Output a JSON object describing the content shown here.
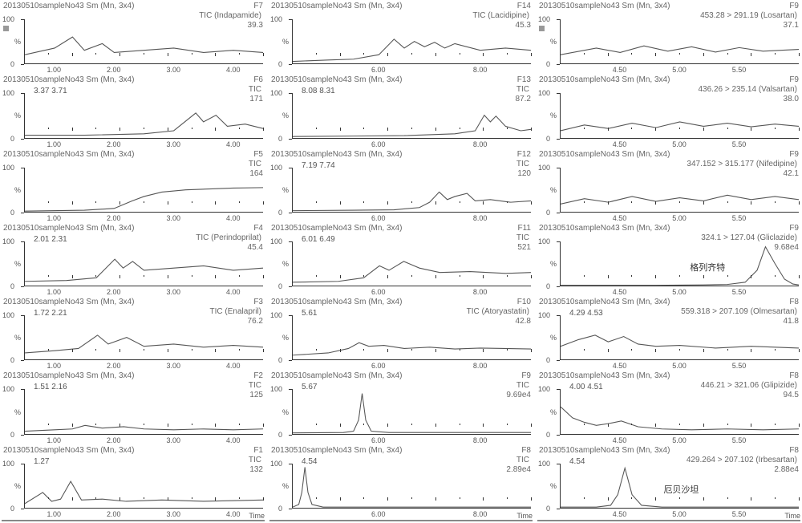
{
  "sample_label": "20130510sampleNo43 Sm (Mn, 3x4)",
  "time_label": "Time",
  "y_unit": "%",
  "y_ticks": [
    0,
    100
  ],
  "columns": [
    {
      "x_ticks": [
        "1.00",
        "2.00",
        "3.00",
        "4.00"
      ],
      "x_range": [
        0.5,
        4.5
      ],
      "panels": [
        {
          "f": "F7",
          "sub": "TIC (Indapamide)",
          "val": "39.3",
          "peaks": "",
          "marker": true,
          "trace": [
            [
              0.5,
              20
            ],
            [
              1.0,
              35
            ],
            [
              1.3,
              60
            ],
            [
              1.5,
              30
            ],
            [
              1.8,
              45
            ],
            [
              2.0,
              25
            ],
            [
              2.5,
              30
            ],
            [
              3.0,
              35
            ],
            [
              3.5,
              25
            ],
            [
              4.0,
              30
            ],
            [
              4.5,
              25
            ]
          ]
        },
        {
          "f": "F6",
          "sub": "TIC",
          "val": "171",
          "peaks": "3.37   3.71",
          "trace": [
            [
              0.5,
              5
            ],
            [
              1.5,
              5
            ],
            [
              2.5,
              8
            ],
            [
              3.0,
              15
            ],
            [
              3.37,
              55
            ],
            [
              3.5,
              35
            ],
            [
              3.71,
              50
            ],
            [
              3.9,
              25
            ],
            [
              4.2,
              30
            ],
            [
              4.5,
              20
            ]
          ]
        },
        {
          "f": "F5",
          "sub": "TIC",
          "val": "164",
          "peaks": "",
          "trace": [
            [
              0.5,
              2
            ],
            [
              1.5,
              4
            ],
            [
              2.0,
              8
            ],
            [
              2.3,
              25
            ],
            [
              2.5,
              35
            ],
            [
              2.8,
              45
            ],
            [
              3.2,
              50
            ],
            [
              3.6,
              52
            ],
            [
              4.0,
              54
            ],
            [
              4.5,
              55
            ]
          ]
        },
        {
          "f": "F4",
          "sub": "TIC (Perindoprilat)",
          "val": "45.4",
          "peaks": "2.01  2.31",
          "trace": [
            [
              0.5,
              10
            ],
            [
              1.2,
              12
            ],
            [
              1.7,
              18
            ],
            [
              2.01,
              60
            ],
            [
              2.15,
              40
            ],
            [
              2.31,
              55
            ],
            [
              2.5,
              35
            ],
            [
              3.0,
              40
            ],
            [
              3.5,
              45
            ],
            [
              4.0,
              35
            ],
            [
              4.5,
              40
            ]
          ]
        },
        {
          "f": "F3",
          "sub": "TIC (Enalapril)",
          "val": "76.2",
          "peaks": "1.72    2.21",
          "trace": [
            [
              0.5,
              15
            ],
            [
              1.0,
              20
            ],
            [
              1.4,
              25
            ],
            [
              1.72,
              55
            ],
            [
              1.9,
              35
            ],
            [
              2.21,
              50
            ],
            [
              2.5,
              30
            ],
            [
              3.0,
              35
            ],
            [
              3.5,
              28
            ],
            [
              4.0,
              32
            ],
            [
              4.5,
              28
            ]
          ]
        },
        {
          "f": "F2",
          "sub": "TIC",
          "val": "125",
          "peaks": "1.51  2.16",
          "trace": [
            [
              0.5,
              5
            ],
            [
              1.0,
              8
            ],
            [
              1.3,
              10
            ],
            [
              1.51,
              18
            ],
            [
              1.8,
              12
            ],
            [
              2.16,
              15
            ],
            [
              2.5,
              10
            ],
            [
              3.0,
              8
            ],
            [
              3.5,
              10
            ],
            [
              4.0,
              8
            ],
            [
              4.5,
              10
            ]
          ]
        },
        {
          "f": "F1",
          "sub": "TIC",
          "val": "132",
          "peaks": "1.27",
          "trace": [
            [
              0.5,
              10
            ],
            [
              0.8,
              35
            ],
            [
              0.95,
              15
            ],
            [
              1.1,
              20
            ],
            [
              1.27,
              60
            ],
            [
              1.45,
              18
            ],
            [
              1.8,
              20
            ],
            [
              2.2,
              15
            ],
            [
              2.8,
              18
            ],
            [
              3.5,
              15
            ],
            [
              4.5,
              18
            ]
          ]
        }
      ]
    },
    {
      "x_ticks": [
        "6.00",
        "8.00"
      ],
      "x_range": [
        4.3,
        9.0
      ],
      "panels": [
        {
          "f": "F14",
          "sub": "TIC (Lacidipine)",
          "val": "45.3",
          "peaks": "",
          "trace": [
            [
              4.3,
              5
            ],
            [
              5.0,
              8
            ],
            [
              5.5,
              10
            ],
            [
              6.0,
              20
            ],
            [
              6.3,
              55
            ],
            [
              6.5,
              35
            ],
            [
              6.7,
              50
            ],
            [
              6.9,
              38
            ],
            [
              7.1,
              48
            ],
            [
              7.3,
              35
            ],
            [
              7.5,
              45
            ],
            [
              8.0,
              30
            ],
            [
              8.5,
              35
            ],
            [
              9.0,
              30
            ]
          ]
        },
        {
          "f": "F13",
          "sub": "TIC",
          "val": "87.2",
          "peaks": "8.08  8.31",
          "trace": [
            [
              4.3,
              2
            ],
            [
              5.5,
              3
            ],
            [
              6.5,
              4
            ],
            [
              7.5,
              8
            ],
            [
              7.9,
              15
            ],
            [
              8.08,
              50
            ],
            [
              8.2,
              35
            ],
            [
              8.31,
              48
            ],
            [
              8.5,
              25
            ],
            [
              8.8,
              15
            ],
            [
              9.0,
              18
            ]
          ]
        },
        {
          "f": "F12",
          "sub": "TIC",
          "val": "120",
          "peaks": "7.19   7.74",
          "trace": [
            [
              4.3,
              3
            ],
            [
              5.5,
              4
            ],
            [
              6.3,
              5
            ],
            [
              6.8,
              10
            ],
            [
              7.0,
              22
            ],
            [
              7.19,
              45
            ],
            [
              7.35,
              28
            ],
            [
              7.5,
              35
            ],
            [
              7.74,
              42
            ],
            [
              7.9,
              25
            ],
            [
              8.2,
              28
            ],
            [
              8.6,
              22
            ],
            [
              9.0,
              25
            ]
          ]
        },
        {
          "f": "F11",
          "sub": "TIC",
          "val": "521",
          "peaks": "6.01   6.49",
          "trace": [
            [
              4.3,
              8
            ],
            [
              5.2,
              10
            ],
            [
              5.7,
              18
            ],
            [
              6.01,
              45
            ],
            [
              6.2,
              35
            ],
            [
              6.49,
              55
            ],
            [
              6.8,
              40
            ],
            [
              7.2,
              30
            ],
            [
              7.8,
              32
            ],
            [
              8.5,
              28
            ],
            [
              9.0,
              30
            ]
          ]
        },
        {
          "f": "F10",
          "sub": "TIC (Atoryastatin)",
          "val": "42.8",
          "peaks": "5.61",
          "trace": [
            [
              4.3,
              10
            ],
            [
              5.0,
              15
            ],
            [
              5.4,
              25
            ],
            [
              5.61,
              38
            ],
            [
              5.8,
              30
            ],
            [
              6.1,
              32
            ],
            [
              6.5,
              25
            ],
            [
              7.0,
              28
            ],
            [
              7.5,
              24
            ],
            [
              8.0,
              26
            ],
            [
              9.0,
              24
            ]
          ]
        },
        {
          "f": "F9",
          "sub": "TIC",
          "val": "9.69e4",
          "peaks": "5.67",
          "trace": [
            [
              4.3,
              1
            ],
            [
              5.3,
              2
            ],
            [
              5.5,
              5
            ],
            [
              5.6,
              30
            ],
            [
              5.67,
              90
            ],
            [
              5.74,
              30
            ],
            [
              5.85,
              5
            ],
            [
              6.2,
              2
            ],
            [
              7.0,
              2
            ],
            [
              8.0,
              2
            ],
            [
              9.0,
              2
            ]
          ]
        },
        {
          "f": "F8",
          "sub": "TIC",
          "val": "2.89e4",
          "peaks": "4.54",
          "trace": [
            [
              4.3,
              2
            ],
            [
              4.42,
              8
            ],
            [
              4.48,
              35
            ],
            [
              4.54,
              92
            ],
            [
              4.6,
              35
            ],
            [
              4.68,
              8
            ],
            [
              4.9,
              2
            ],
            [
              5.5,
              2
            ],
            [
              6.5,
              2
            ],
            [
              8.0,
              2
            ],
            [
              9.0,
              2
            ]
          ]
        }
      ]
    },
    {
      "x_ticks": [
        "4.50",
        "5.00",
        "5.50"
      ],
      "x_range": [
        4.0,
        6.0
      ],
      "panels": [
        {
          "f": "F9",
          "sub": "453.28 > 291.19 (Losartan)",
          "val": "37.1",
          "peaks": "",
          "marker": true,
          "trace": [
            [
              4.0,
              20
            ],
            [
              4.3,
              35
            ],
            [
              4.5,
              25
            ],
            [
              4.7,
              40
            ],
            [
              4.9,
              28
            ],
            [
              5.1,
              38
            ],
            [
              5.3,
              26
            ],
            [
              5.5,
              36
            ],
            [
              5.7,
              28
            ],
            [
              6.0,
              32
            ]
          ]
        },
        {
          "f": "F9",
          "sub": "436.26 > 235.14 (Valsartan)",
          "val": "38.0",
          "peaks": "",
          "trace": [
            [
              4.0,
              15
            ],
            [
              4.2,
              28
            ],
            [
              4.4,
              20
            ],
            [
              4.6,
              32
            ],
            [
              4.8,
              22
            ],
            [
              5.0,
              35
            ],
            [
              5.2,
              25
            ],
            [
              5.4,
              32
            ],
            [
              5.6,
              24
            ],
            [
              5.8,
              30
            ],
            [
              6.0,
              25
            ]
          ]
        },
        {
          "f": "F9",
          "sub": "347.152 > 315.177 (Nifedipine)",
          "val": "42.1",
          "peaks": "",
          "trace": [
            [
              4.0,
              18
            ],
            [
              4.2,
              30
            ],
            [
              4.4,
              22
            ],
            [
              4.6,
              35
            ],
            [
              4.8,
              24
            ],
            [
              5.0,
              32
            ],
            [
              5.2,
              25
            ],
            [
              5.4,
              38
            ],
            [
              5.6,
              28
            ],
            [
              5.8,
              35
            ],
            [
              6.0,
              28
            ]
          ]
        },
        {
          "f": "F9",
          "sub": "324.1 > 127.04 (Gliclazide)",
          "val": "9.68e4",
          "peaks": "",
          "chinese": "格列齐特",
          "chinese_pos": [
            58,
            50
          ],
          "trace": [
            [
              4.0,
              1
            ],
            [
              4.8,
              1
            ],
            [
              5.2,
              2
            ],
            [
              5.4,
              3
            ],
            [
              5.55,
              8
            ],
            [
              5.65,
              35
            ],
            [
              5.72,
              88
            ],
            [
              5.8,
              50
            ],
            [
              5.88,
              15
            ],
            [
              5.95,
              4
            ],
            [
              6.0,
              2
            ]
          ]
        },
        {
          "f": "F8",
          "sub": "559.318 > 207.109 (Olmesartan)",
          "val": "41.8",
          "peaks": "4.29  4.53",
          "trace": [
            [
              4.0,
              30
            ],
            [
              4.15,
              45
            ],
            [
              4.29,
              55
            ],
            [
              4.4,
              40
            ],
            [
              4.53,
              52
            ],
            [
              4.65,
              35
            ],
            [
              4.8,
              30
            ],
            [
              5.0,
              32
            ],
            [
              5.3,
              26
            ],
            [
              5.6,
              30
            ],
            [
              6.0,
              26
            ]
          ]
        },
        {
          "f": "F8",
          "sub": "446.21 > 321.06 (Glipizide)",
          "val": "94.5",
          "peaks": "4.00          4.51",
          "trace": [
            [
              4.0,
              60
            ],
            [
              4.1,
              35
            ],
            [
              4.2,
              25
            ],
            [
              4.3,
              18
            ],
            [
              4.4,
              22
            ],
            [
              4.51,
              28
            ],
            [
              4.65,
              15
            ],
            [
              4.85,
              10
            ],
            [
              5.1,
              8
            ],
            [
              5.4,
              10
            ],
            [
              5.7,
              8
            ],
            [
              6.0,
              10
            ]
          ]
        },
        {
          "f": "F8",
          "sub": "429.264 > 207.102 (Irbesartan)",
          "val": "2.88e4",
          "peaks": "4.54",
          "chinese": "厄贝沙坦",
          "chinese_pos": [
            48,
            50
          ],
          "trace": [
            [
              4.0,
              2
            ],
            [
              4.3,
              2
            ],
            [
              4.42,
              6
            ],
            [
              4.48,
              30
            ],
            [
              4.54,
              90
            ],
            [
              4.6,
              30
            ],
            [
              4.68,
              6
            ],
            [
              4.85,
              2
            ],
            [
              5.2,
              2
            ],
            [
              5.6,
              2
            ],
            [
              6.0,
              2
            ]
          ]
        }
      ]
    }
  ],
  "colors": {
    "text": "#666666",
    "axis": "#333333",
    "trace": "#555555",
    "bg": "#ffffff"
  }
}
